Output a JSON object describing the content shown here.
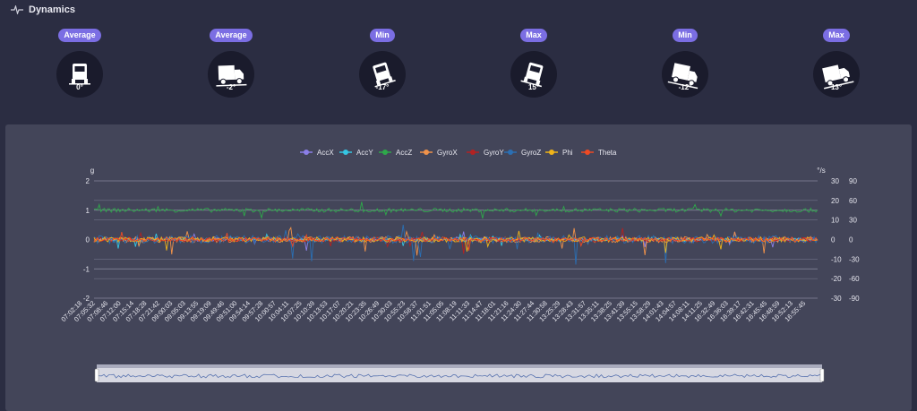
{
  "header": {
    "title": "Dynamics",
    "icon": "pulse-icon"
  },
  "gauges": [
    {
      "badge": "Average",
      "value": "0°",
      "icon": "truck-front-icon",
      "tilt": 0
    },
    {
      "badge": "Average",
      "value": "-2°",
      "icon": "truck-side-icon",
      "tilt": -2
    },
    {
      "badge": "Min",
      "value": "-17°",
      "icon": "truck-front-icon",
      "tilt": -17
    },
    {
      "badge": "Max",
      "value": "15°",
      "icon": "truck-front-icon",
      "tilt": 15
    },
    {
      "badge": "Min",
      "value": "-12°",
      "icon": "truck-side-icon",
      "tilt": -12
    },
    {
      "badge": "Max",
      "value": "13°",
      "icon": "truck-side-icon",
      "tilt": 13
    }
  ],
  "colors": {
    "background": "#2b2d42",
    "panel": "#434559",
    "badge": "#7b6ee3",
    "gauge_circle": "#1a1b2c"
  },
  "chart_data": {
    "type": "line",
    "left_axis": {
      "unit": "g",
      "ticks": [
        "2",
        "1",
        "0",
        "-1",
        "-2"
      ],
      "range": [
        -2,
        2
      ]
    },
    "right_axis_inner": {
      "unit": "°/s",
      "ticks": [
        "30",
        "20",
        "10",
        "0",
        "-10",
        "-20",
        "-30"
      ],
      "range": [
        -30,
        30
      ]
    },
    "right_axis_outer": {
      "ticks": [
        "90",
        "60",
        "30",
        "0",
        "-30",
        "-60",
        "-90"
      ],
      "range": [
        -90,
        90
      ]
    },
    "grid": true,
    "legend_position": "top-center",
    "x_ticks": [
      "07:02:18",
      "07:05:32",
      "07:08:46",
      "07:12:00",
      "07:15:14",
      "07:18:28",
      "07:21:42",
      "09:00:03",
      "09:05:03",
      "09:13:55",
      "09:19:09",
      "09:49:46",
      "09:51:00",
      "09:54:14",
      "09:57:28",
      "10:00:57",
      "10:04:11",
      "10:07:25",
      "10:10:39",
      "10:13:53",
      "10:17:07",
      "10:20:21",
      "10:23:35",
      "10:26:49",
      "10:30:03",
      "10:55:23",
      "10:58:37",
      "11:01:51",
      "11:05:05",
      "11:08:19",
      "11:11:33",
      "11:14:47",
      "11:18:01",
      "11:21:16",
      "11:24:30",
      "11:27:44",
      "11:30:58",
      "13:25:29",
      "13:28:43",
      "13:31:57",
      "13:35:11",
      "13:38:25",
      "13:41:39",
      "13:55:15",
      "13:58:29",
      "14:01:43",
      "14:04:57",
      "14:08:11",
      "14:11:25",
      "16:32:49",
      "16:36:03",
      "16:39:17",
      "16:42:31",
      "16:45:45",
      "16:48:59",
      "16:52:13",
      "16:55:45"
    ],
    "series": [
      {
        "name": "AccX",
        "color": "#8b7fe8",
        "axis": "g",
        "level": 0.0,
        "noise": 0.06
      },
      {
        "name": "AccY",
        "color": "#35c6e3",
        "axis": "g",
        "level": 0.0,
        "noise": 0.05
      },
      {
        "name": "AccZ",
        "color": "#2ea84a",
        "axis": "g",
        "level": 1.0,
        "noise": 0.07
      },
      {
        "name": "GyroX",
        "color": "#f0924a",
        "axis": "deg",
        "level": 0.0,
        "noise": 1.5
      },
      {
        "name": "GyroY",
        "color": "#b22222",
        "axis": "deg",
        "level": 0.0,
        "noise": 1.2
      },
      {
        "name": "GyroZ",
        "color": "#2b6fb3",
        "axis": "deg",
        "level": 0.0,
        "noise": 2.0
      },
      {
        "name": "Phi",
        "color": "#f0b419",
        "axis": "deg",
        "level": 0.0,
        "noise": 1.3
      },
      {
        "name": "Theta",
        "color": "#f04a23",
        "axis": "deg",
        "level": 0.0,
        "noise": 1.0
      }
    ]
  }
}
